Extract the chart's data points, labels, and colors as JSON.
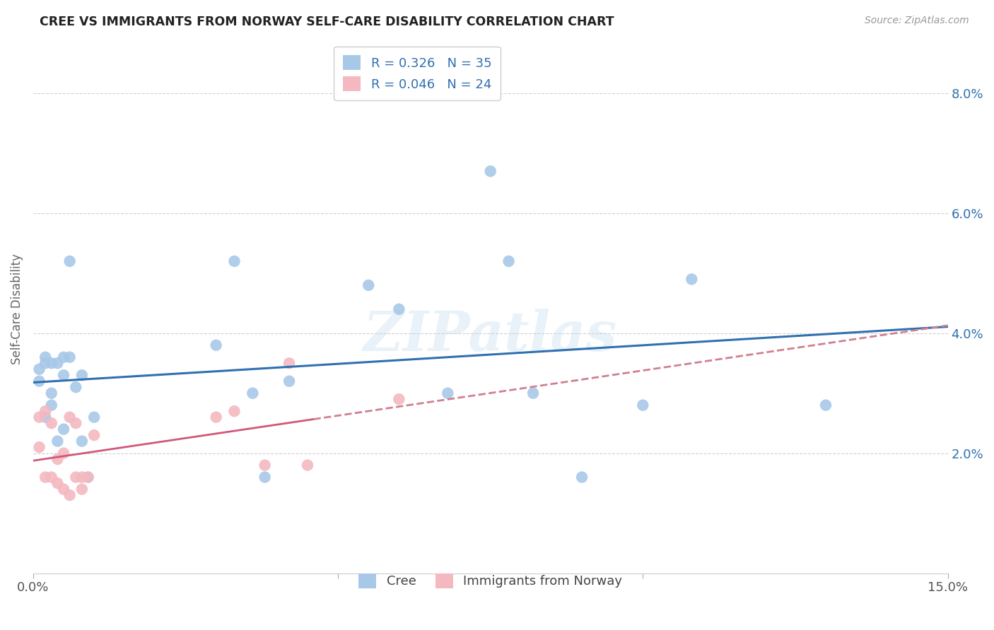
{
  "title": "CREE VS IMMIGRANTS FROM NORWAY SELF-CARE DISABILITY CORRELATION CHART",
  "source": "Source: ZipAtlas.com",
  "ylabel": "Self-Care Disability",
  "watermark": "ZIPatlas",
  "legend_cree": {
    "R": 0.326,
    "N": 35
  },
  "legend_norway": {
    "R": 0.046,
    "N": 24
  },
  "cree_color": "#a8c8e8",
  "norway_color": "#f4b8c0",
  "cree_line_color": "#3070b0",
  "norway_line_color": "#d05878",
  "norway_line_dash_color": "#d08090",
  "background_color": "#ffffff",
  "xlim": [
    0.0,
    0.15
  ],
  "ylim": [
    0.0,
    0.088
  ],
  "yticks": [
    0.02,
    0.04,
    0.06,
    0.08
  ],
  "ytick_labels": [
    "2.0%",
    "4.0%",
    "6.0%",
    "8.0%"
  ],
  "xticks": [
    0.0,
    0.05,
    0.1,
    0.15
  ],
  "xtick_labels": [
    "0.0%",
    "",
    "",
    "15.0%"
  ],
  "cree_x": [
    0.001,
    0.001,
    0.002,
    0.002,
    0.002,
    0.003,
    0.003,
    0.003,
    0.004,
    0.004,
    0.005,
    0.005,
    0.005,
    0.006,
    0.006,
    0.007,
    0.008,
    0.008,
    0.009,
    0.01,
    0.03,
    0.033,
    0.036,
    0.038,
    0.042,
    0.055,
    0.06,
    0.068,
    0.075,
    0.078,
    0.082,
    0.09,
    0.1,
    0.108,
    0.13
  ],
  "cree_y": [
    0.032,
    0.034,
    0.036,
    0.026,
    0.035,
    0.03,
    0.028,
    0.035,
    0.035,
    0.022,
    0.036,
    0.033,
    0.024,
    0.052,
    0.036,
    0.031,
    0.033,
    0.022,
    0.016,
    0.026,
    0.038,
    0.052,
    0.03,
    0.016,
    0.032,
    0.048,
    0.044,
    0.03,
    0.067,
    0.052,
    0.03,
    0.016,
    0.028,
    0.049,
    0.028
  ],
  "norway_x": [
    0.001,
    0.001,
    0.002,
    0.002,
    0.003,
    0.003,
    0.004,
    0.004,
    0.005,
    0.005,
    0.006,
    0.006,
    0.007,
    0.007,
    0.008,
    0.008,
    0.009,
    0.01,
    0.03,
    0.033,
    0.038,
    0.042,
    0.045,
    0.06
  ],
  "norway_y": [
    0.026,
    0.021,
    0.027,
    0.016,
    0.025,
    0.016,
    0.019,
    0.015,
    0.014,
    0.02,
    0.013,
    0.026,
    0.016,
    0.025,
    0.016,
    0.014,
    0.016,
    0.023,
    0.026,
    0.027,
    0.018,
    0.035,
    0.018,
    0.029
  ]
}
